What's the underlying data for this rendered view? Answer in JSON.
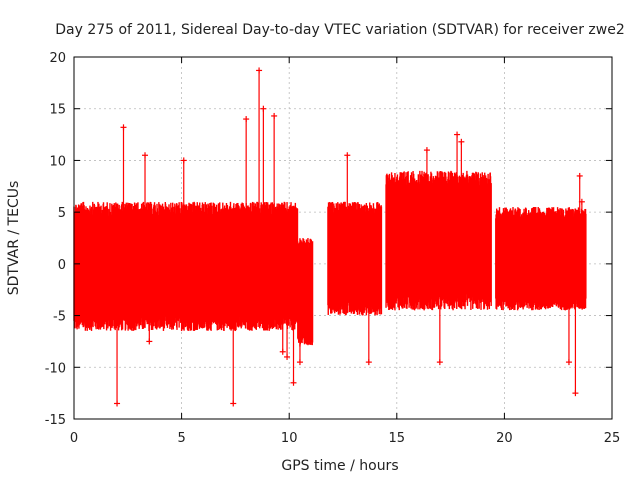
{
  "chart_data": {
    "type": "scatter",
    "title": "Day 275 of 2011, Sidereal Day-to-day VTEC variation (SDTVAR) for receiver zwe2",
    "xlabel": "GPS time / hours",
    "ylabel": "SDTVAR / TECUs",
    "xlim": [
      0,
      25
    ],
    "ylim": [
      -15,
      20
    ],
    "xticks": [
      0,
      5,
      10,
      15,
      20,
      25
    ],
    "yticks": [
      -15,
      -10,
      -5,
      0,
      5,
      10,
      15,
      20
    ],
    "grid": true,
    "marker": "+",
    "series_color": "#ff0000",
    "segments": [
      {
        "start": 0.0,
        "end": 10.4,
        "lo": -6.5,
        "hi": 6.0
      },
      {
        "start": 10.4,
        "end": 11.1,
        "lo": -8.0,
        "hi": 2.5
      },
      {
        "start": 11.8,
        "end": 14.3,
        "lo": -5.0,
        "hi": 6.0
      },
      {
        "start": 14.5,
        "end": 19.4,
        "lo": -4.5,
        "hi": 9.0
      },
      {
        "start": 19.6,
        "end": 23.8,
        "lo": -4.5,
        "hi": 5.5
      }
    ],
    "notable_points": [
      [
        2.3,
        13.2
      ],
      [
        2.0,
        -13.5
      ],
      [
        3.3,
        10.5
      ],
      [
        3.5,
        -7.5
      ],
      [
        5.1,
        10.0
      ],
      [
        7.4,
        -13.5
      ],
      [
        8.0,
        14.0
      ],
      [
        8.6,
        18.7
      ],
      [
        8.8,
        15.0
      ],
      [
        9.3,
        14.3
      ],
      [
        9.7,
        -8.5
      ],
      [
        9.9,
        -9.0
      ],
      [
        10.2,
        -11.5
      ],
      [
        10.5,
        -9.5
      ],
      [
        12.7,
        10.5
      ],
      [
        13.7,
        -9.5
      ],
      [
        16.4,
        11.0
      ],
      [
        17.0,
        -9.5
      ],
      [
        17.8,
        12.5
      ],
      [
        18.0,
        11.8
      ],
      [
        23.0,
        -9.5
      ],
      [
        23.3,
        -12.5
      ],
      [
        23.5,
        8.5
      ],
      [
        23.6,
        6.0
      ]
    ]
  }
}
